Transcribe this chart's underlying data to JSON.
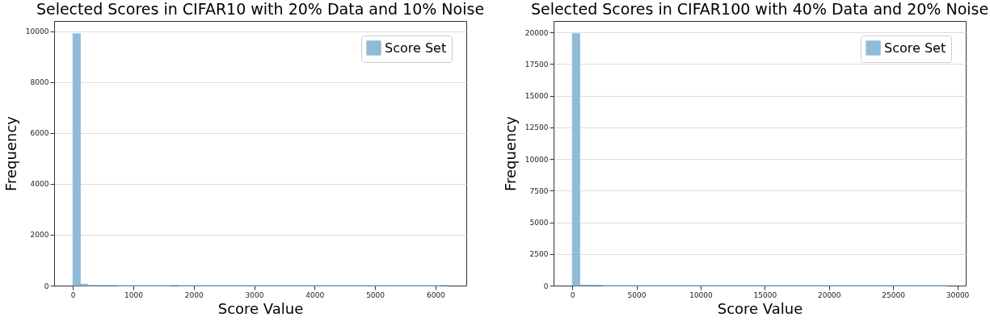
{
  "chart_data": [
    {
      "type": "histogram",
      "title": "Selected Scores in CIFAR10 with 20% Data and 10% Noise",
      "xlabel": "Score Value",
      "ylabel": "Frequency",
      "bins": [
        0,
        124,
        248,
        372,
        496,
        620,
        744,
        868,
        992,
        1116,
        1240,
        1364,
        1488,
        1612,
        1736,
        1860,
        1984,
        2108,
        2232,
        2356,
        2480,
        2604,
        2728,
        2852,
        2976,
        3100,
        3224,
        3348,
        3472,
        3596,
        3720,
        3844,
        3968,
        4092,
        4216,
        4340,
        4464,
        4588,
        4712,
        4836,
        4960,
        5084,
        5208,
        5332,
        5456,
        5580,
        5704,
        5828,
        5952,
        6076,
        6200
      ],
      "series": [
        {
          "name": "Score Set",
          "color": "#8fbbd9",
          "values": [
            9900,
            60,
            10,
            10,
            10,
            10,
            0,
            0,
            0,
            0,
            0,
            0,
            0,
            10,
            0,
            0,
            0,
            0,
            0,
            0,
            0,
            0,
            0,
            0,
            0,
            0,
            0,
            0,
            0,
            0,
            0,
            0,
            0,
            0,
            0,
            0,
            0,
            0,
            0,
            0,
            0,
            0,
            0,
            0,
            0,
            0,
            0,
            0,
            0,
            10
          ]
        }
      ],
      "xlim": [
        -310,
        6510
      ],
      "xticks": [
        0,
        1000,
        2000,
        3000,
        4000,
        5000,
        6000
      ],
      "ylim": [
        0,
        10400
      ],
      "yticks": [
        0,
        2000,
        4000,
        6000,
        8000,
        10000
      ],
      "grid": "y",
      "legend": "top right"
    },
    {
      "type": "histogram",
      "title": "Selected Scores in CIFAR100 with 40% Data and 20% Noise",
      "xlabel": "Score Value",
      "ylabel": "Frequency",
      "bins": [
        0,
        584,
        1168,
        1752,
        2336,
        2920,
        3504,
        4088,
        4672,
        5256,
        5840,
        6424,
        7008,
        7592,
        8176,
        8760,
        9344,
        9928,
        10512,
        11096,
        11680,
        12264,
        12848,
        13432,
        14016,
        14600,
        15184,
        15768,
        16352,
        16936,
        17520,
        18104,
        18688,
        19272,
        19856,
        20440,
        21024,
        21608,
        22192,
        22776,
        23360,
        23944,
        24528,
        25112,
        25696,
        26280,
        26864,
        27448,
        28032,
        28616,
        29200
      ],
      "series": [
        {
          "name": "Score Set",
          "color": "#8fbbd9",
          "values": [
            19900,
            50,
            40,
            30,
            0,
            0,
            0,
            0,
            0,
            0,
            0,
            0,
            0,
            0,
            0,
            0,
            0,
            0,
            0,
            0,
            0,
            0,
            0,
            0,
            0,
            0,
            0,
            0,
            0,
            0,
            0,
            0,
            0,
            0,
            0,
            0,
            0,
            0,
            0,
            0,
            0,
            0,
            0,
            0,
            0,
            0,
            0,
            0,
            0,
            0
          ]
        }
      ],
      "xlim": [
        -1460,
        30660
      ],
      "xticks": [
        0,
        5000,
        10000,
        15000,
        20000,
        25000,
        30000
      ],
      "ylim": [
        0,
        20900
      ],
      "yticks": [
        0,
        2500,
        5000,
        7500,
        10000,
        12500,
        15000,
        17500,
        20000
      ],
      "grid": "y",
      "legend": "top right"
    }
  ]
}
